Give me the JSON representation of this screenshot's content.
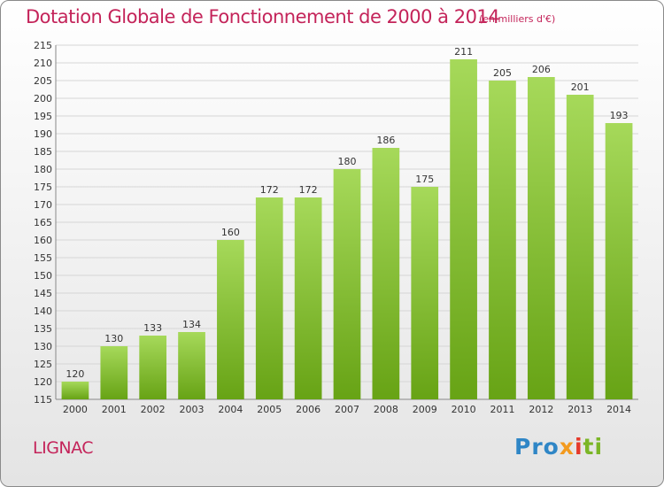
{
  "title": "Dotation Globale de Fonctionnement de 2000 à 2014",
  "subtitle": "(en milliers d'€)",
  "commune": "LIGNAC",
  "logo": {
    "p1": "Pro",
    "p2": "x",
    "p3": "i",
    "p4": "ti"
  },
  "colors": {
    "bar_light": "#a6d95a",
    "bar_dark": "#67a315",
    "title": "#c4245a"
  },
  "chart_data": {
    "type": "bar",
    "categories": [
      "2000",
      "2001",
      "2002",
      "2003",
      "2004",
      "2005",
      "2006",
      "2007",
      "2008",
      "2009",
      "2010",
      "2011",
      "2012",
      "2013",
      "2014"
    ],
    "values": [
      120,
      130,
      133,
      134,
      160,
      172,
      172,
      180,
      186,
      175,
      211,
      205,
      206,
      201,
      193
    ],
    "title": "Dotation Globale de Fonctionnement de 2000 à 2014",
    "subtitle": "(en milliers d'€)",
    "xlabel": "",
    "ylabel": "",
    "ylim": [
      115,
      215
    ],
    "yticks": [
      115,
      120,
      125,
      130,
      135,
      140,
      145,
      150,
      155,
      160,
      165,
      170,
      175,
      180,
      185,
      190,
      195,
      200,
      205,
      210,
      215
    ],
    "grid": true,
    "legend": "none"
  }
}
